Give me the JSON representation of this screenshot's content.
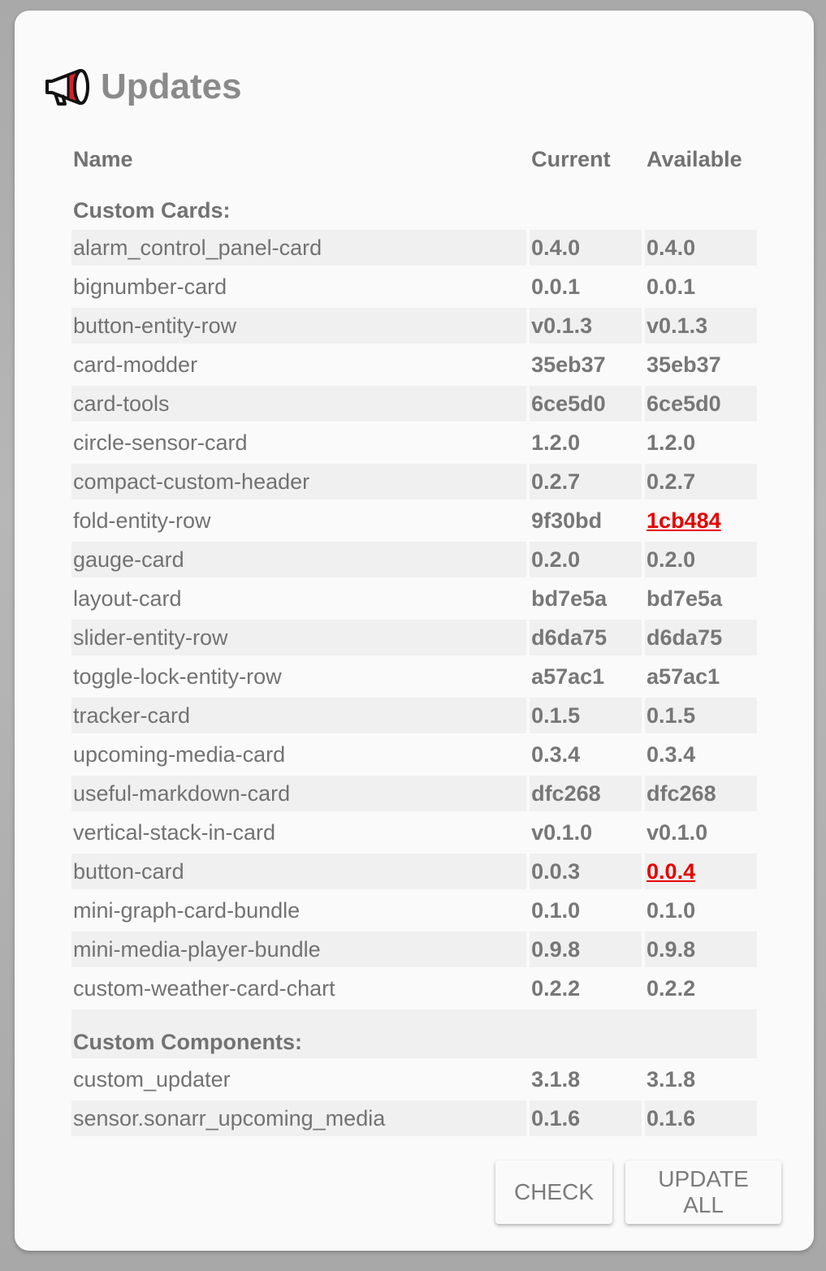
{
  "title": "Updates",
  "icon": "megaphone-icon",
  "columns": {
    "name": "Name",
    "current": "Current",
    "available": "Available"
  },
  "sections": {
    "cards_label": "Custom Cards:",
    "components_label": "Custom Components:"
  },
  "cards": [
    {
      "name": "alarm_control_panel-card",
      "current": "0.4.0",
      "available": "0.4.0",
      "update": false
    },
    {
      "name": "bignumber-card",
      "current": "0.0.1",
      "available": "0.0.1",
      "update": false
    },
    {
      "name": "button-entity-row",
      "current": "v0.1.3",
      "available": "v0.1.3",
      "update": false
    },
    {
      "name": "card-modder",
      "current": "35eb37",
      "available": "35eb37",
      "update": false
    },
    {
      "name": "card-tools",
      "current": "6ce5d0",
      "available": "6ce5d0",
      "update": false
    },
    {
      "name": "circle-sensor-card",
      "current": "1.2.0",
      "available": "1.2.0",
      "update": false
    },
    {
      "name": "compact-custom-header",
      "current": "0.2.7",
      "available": "0.2.7",
      "update": false
    },
    {
      "name": "fold-entity-row",
      "current": "9f30bd",
      "available": "1cb484",
      "update": true
    },
    {
      "name": "gauge-card",
      "current": "0.2.0",
      "available": "0.2.0",
      "update": false
    },
    {
      "name": "layout-card",
      "current": "bd7e5a",
      "available": "bd7e5a",
      "update": false
    },
    {
      "name": "slider-entity-row",
      "current": "d6da75",
      "available": "d6da75",
      "update": false
    },
    {
      "name": "toggle-lock-entity-row",
      "current": "a57ac1",
      "available": "a57ac1",
      "update": false
    },
    {
      "name": "tracker-card",
      "current": "0.1.5",
      "available": "0.1.5",
      "update": false
    },
    {
      "name": "upcoming-media-card",
      "current": "0.3.4",
      "available": "0.3.4",
      "update": false
    },
    {
      "name": "useful-markdown-card",
      "current": "dfc268",
      "available": "dfc268",
      "update": false
    },
    {
      "name": "vertical-stack-in-card",
      "current": "v0.1.0",
      "available": "v0.1.0",
      "update": false
    },
    {
      "name": "button-card",
      "current": "0.0.3",
      "available": "0.0.4",
      "update": true
    },
    {
      "name": "mini-graph-card-bundle",
      "current": "0.1.0",
      "available": "0.1.0",
      "update": false
    },
    {
      "name": "mini-media-player-bundle",
      "current": "0.9.8",
      "available": "0.9.8",
      "update": false
    },
    {
      "name": "custom-weather-card-chart",
      "current": "0.2.2",
      "available": "0.2.2",
      "update": false
    }
  ],
  "components": [
    {
      "name": "custom_updater",
      "current": "3.1.8",
      "available": "3.1.8",
      "update": false
    },
    {
      "name": "sensor.sonarr_upcoming_media",
      "current": "0.1.6",
      "available": "0.1.6",
      "update": false
    }
  ],
  "buttons": {
    "check": "CHECK",
    "update_all": "UPDATE ALL"
  },
  "colors": {
    "update_available": "#e60000",
    "text": "#727272",
    "card_bg": "#fafafa"
  }
}
